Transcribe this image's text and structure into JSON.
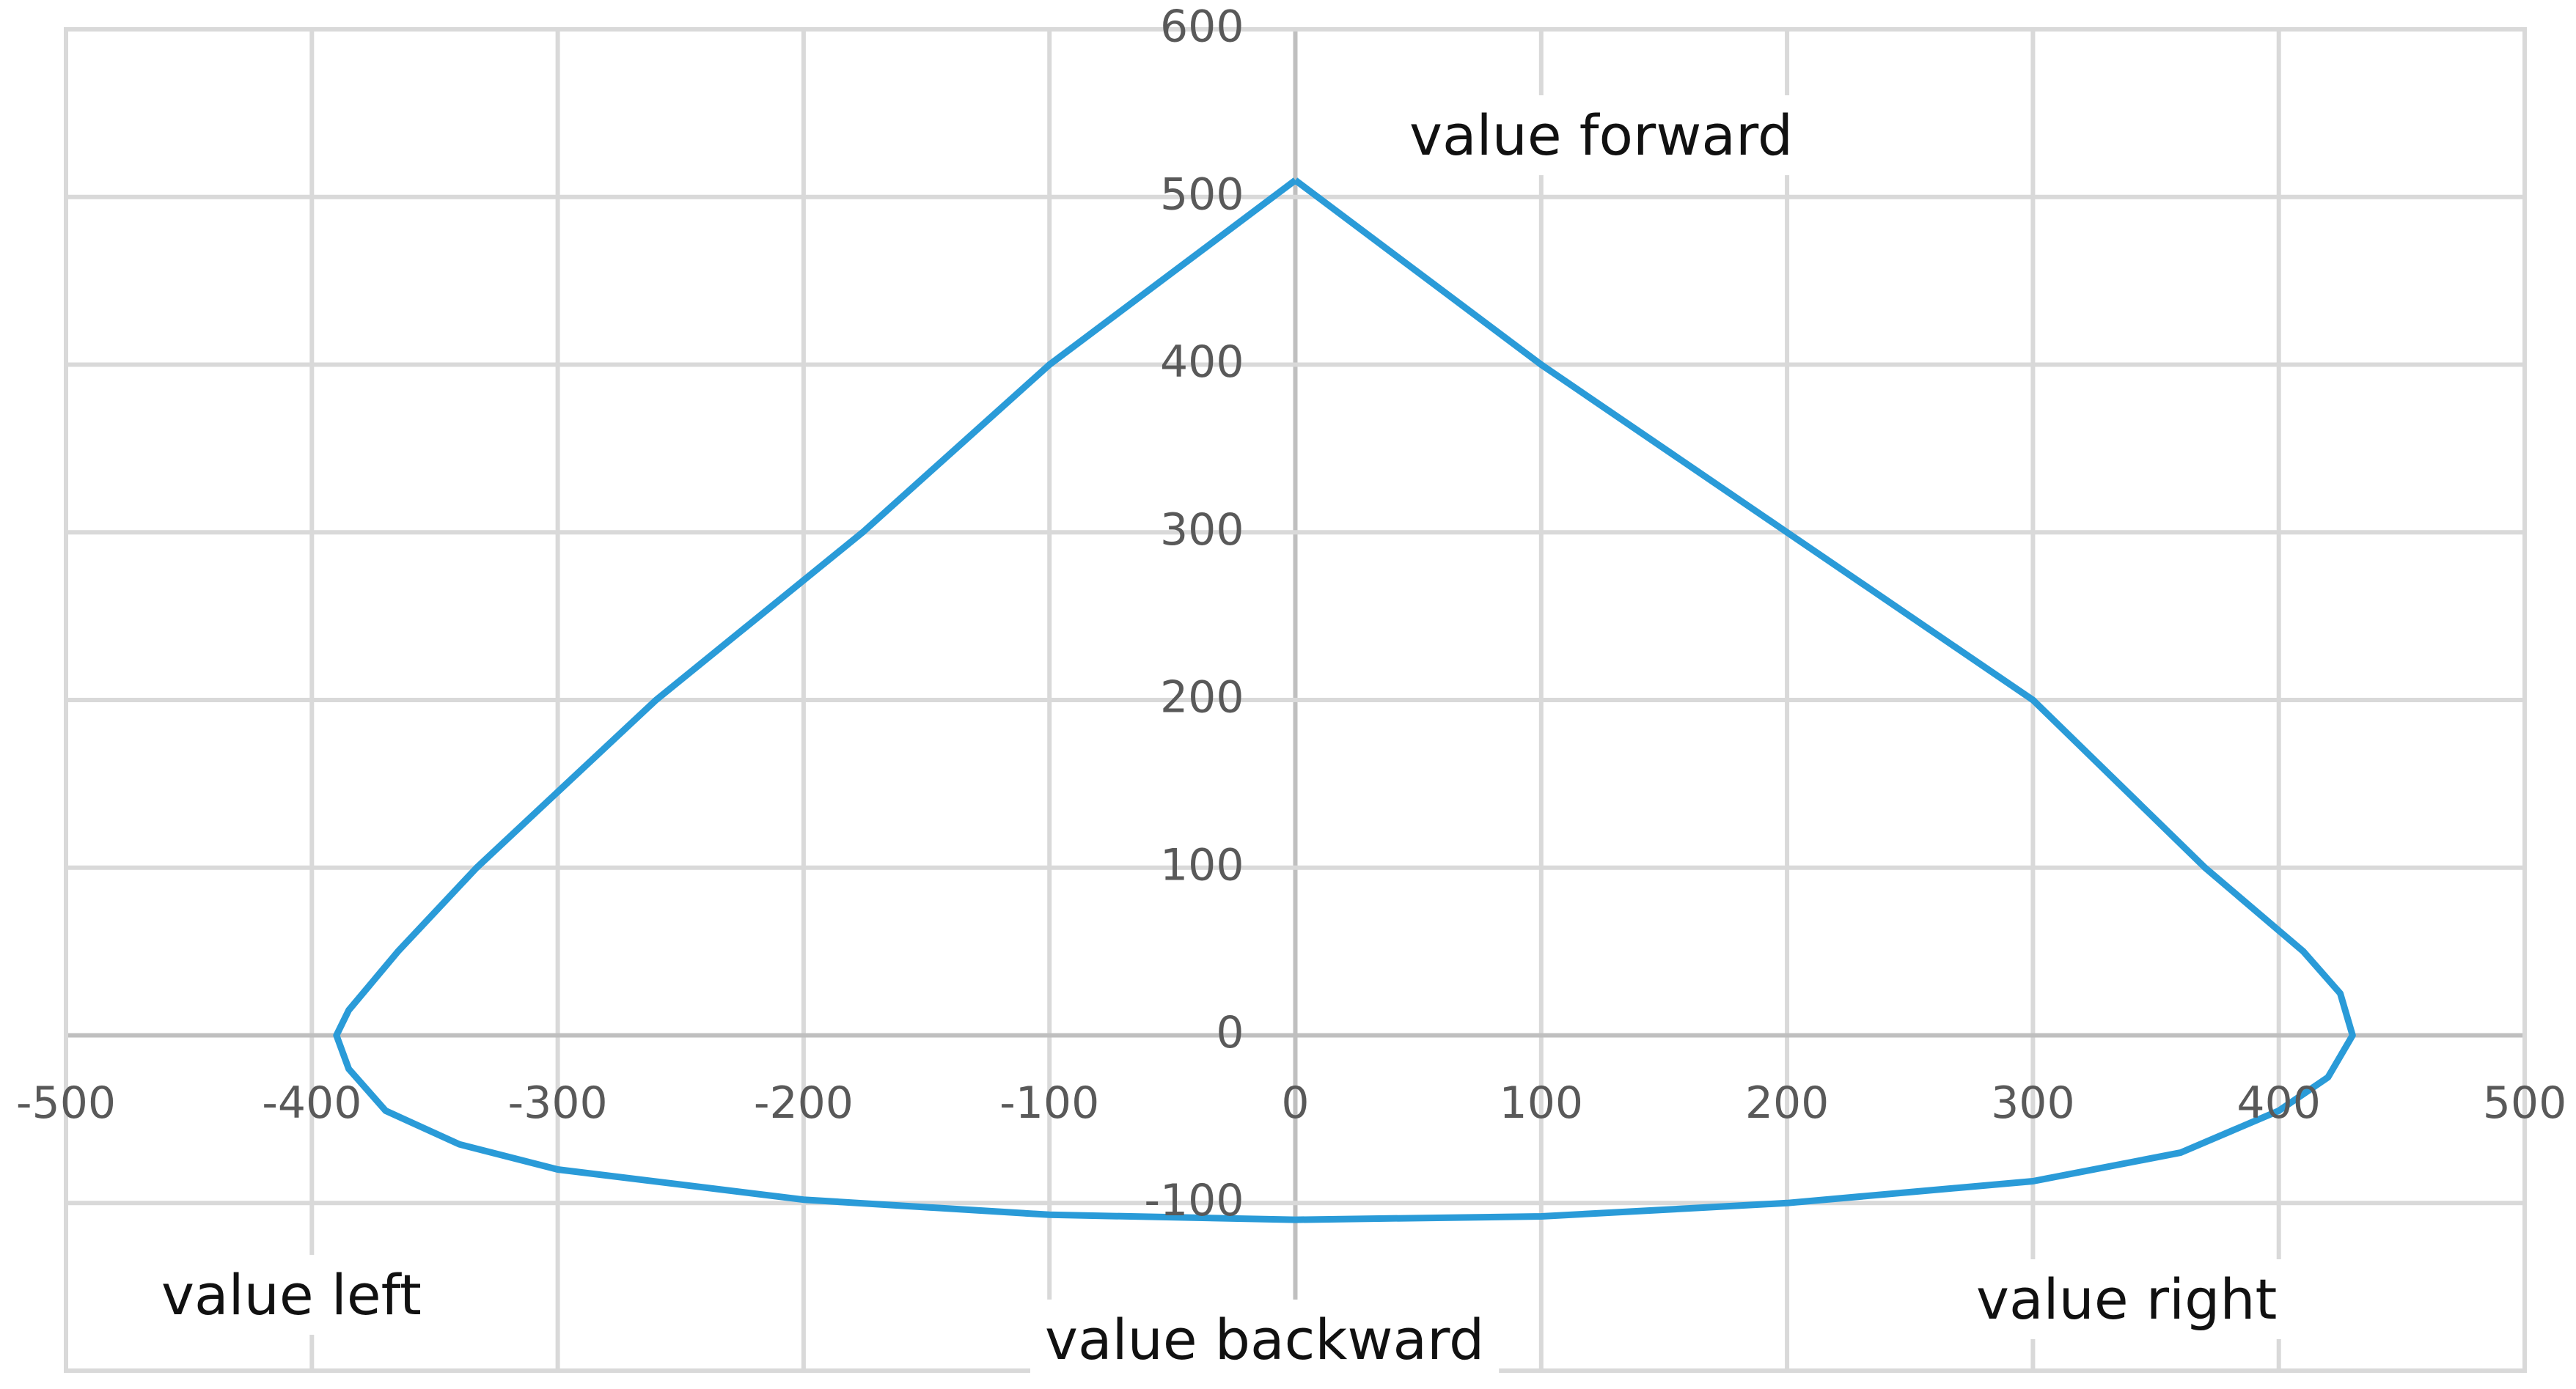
{
  "chart_data": {
    "type": "line",
    "x": [
      0,
      -100,
      -176,
      -260,
      -333,
      -365,
      -385,
      -390,
      -385,
      -370,
      -340,
      -300,
      -200,
      -100,
      0,
      100,
      200,
      300,
      360,
      400,
      420,
      430,
      425,
      410,
      370,
      300,
      200,
      100,
      0
    ],
    "series": [
      {
        "color": "#2a9bd8",
        "values": [
          510,
          400,
          300,
          200,
          100,
          50,
          15,
          0,
          -20,
          -45,
          -65,
          -80,
          -98,
          -107,
          -110,
          -108,
          -100,
          -87,
          -70,
          -45,
          -25,
          0,
          25,
          50,
          100,
          200,
          300,
          400,
          510
        ]
      }
    ],
    "xlim": [
      -500,
      500
    ],
    "xticks": [
      -500,
      -400,
      -300,
      -200,
      -100,
      0,
      100,
      200,
      300,
      400,
      500
    ],
    "ylim": [
      -200,
      600
    ],
    "yticks": [
      -100,
      0,
      100,
      200,
      300,
      400,
      500,
      600
    ],
    "grid": true,
    "annotations": [
      "value forward",
      "value left",
      "value backward",
      "value right"
    ]
  }
}
